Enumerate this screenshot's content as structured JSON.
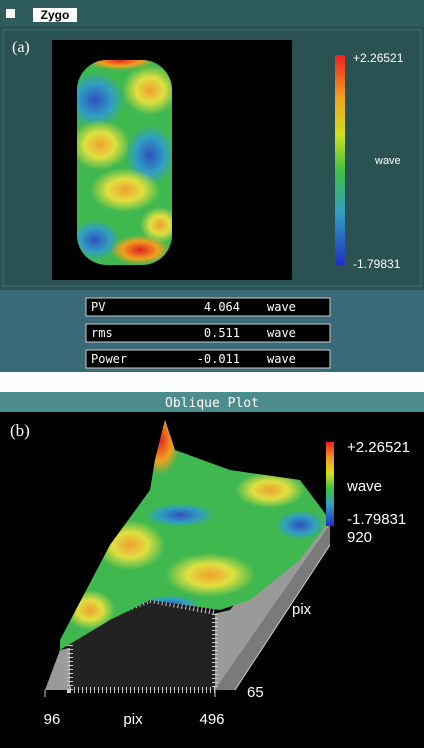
{
  "panel_a": {
    "app_title": "Zygo",
    "label": "(a)",
    "colorbar": {
      "max": "+2.26521",
      "unit": "wave",
      "min": "-1.79831"
    },
    "stats": [
      [
        "PV",
        "4.064",
        "wave"
      ],
      [
        "rms",
        "0.511",
        "wave"
      ],
      [
        "Power",
        "-0.011",
        "wave"
      ]
    ]
  },
  "panel_b": {
    "title": "Oblique Plot",
    "label": "(b)",
    "colorbar": {
      "max": "+2.26521",
      "unit": "wave",
      "min": "-1.79831"
    },
    "y_axis": {
      "max": "920",
      "label": "pix",
      "min": "65"
    },
    "x_axis": {
      "min": "96",
      "label": "pix",
      "max": "496"
    }
  }
}
